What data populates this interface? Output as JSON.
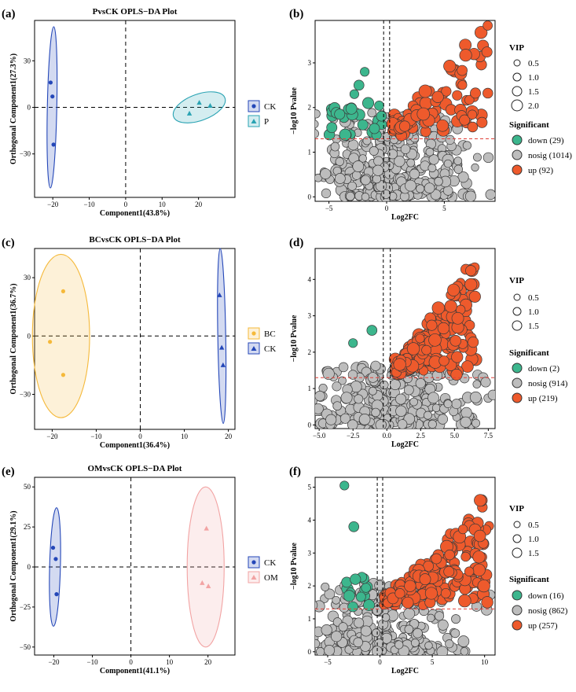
{
  "chart_data": [
    {
      "panel": "(a)",
      "type": "scatter",
      "title": "PvsCK OPLS−DA Plot",
      "xlabel": "Component1(43.8%)",
      "ylabel": "Orthogonal Component1(27.3%)",
      "xlim": [
        -25,
        30
      ],
      "ylim": [
        -58,
        56
      ],
      "xticks": [
        -20,
        -10,
        0,
        10,
        20
      ],
      "yticks": [
        -30,
        0,
        30
      ],
      "series": [
        {
          "name": "CK",
          "color": "#2447b8",
          "marker": "circle",
          "x": [
            -20.6,
            -20.1,
            -19.8
          ],
          "y": [
            16,
            7,
            -24
          ],
          "ellipse": {
            "cx": -20.2,
            "cy": 0,
            "rx": 1.3,
            "ry": 52,
            "rot": 1.2
          }
        },
        {
          "name": "P",
          "color": "#2aa3b3",
          "marker": "triangle",
          "x": [
            17.5,
            20.2,
            23.2
          ],
          "y": [
            -4,
            3,
            1
          ],
          "ellipse": {
            "cx": 20.2,
            "cy": 0,
            "rx": 7.5,
            "ry": 8.5,
            "rot": -20
          }
        }
      ]
    },
    {
      "panel": "(b)",
      "type": "scatter",
      "subtype": "volcano",
      "xlabel": "Log2FC",
      "ylabel": "−log10 Pvalue",
      "xlim": [
        -6.2,
        9.4
      ],
      "ylim": [
        -0.1,
        3.95
      ],
      "xticks": [
        -5,
        0,
        5
      ],
      "yticks": [
        0,
        1,
        2,
        3
      ],
      "threshold_p": 1.3,
      "fc_lines": [
        -0.26,
        0.26
      ],
      "vip_legend": [
        "0.5",
        "1.0",
        "1.5",
        "2.0"
      ],
      "categories": [
        {
          "name": "down",
          "label": "down (29)",
          "count": 29,
          "color": "#3cb68d"
        },
        {
          "name": "nosig",
          "label": "nosig (1014)",
          "count": 1014,
          "color": "#bdbdbd"
        },
        {
          "name": "up",
          "label": "up (92)",
          "count": 92,
          "color": "#ee5a2c"
        }
      ]
    },
    {
      "panel": "(c)",
      "type": "scatter",
      "title": "BCvsCK OPLS−DA Plot",
      "xlabel": "Component1(36.4%)",
      "ylabel": "Orthogonal Component1(36.7%)",
      "xlim": [
        -24,
        21.5
      ],
      "ylim": [
        -48,
        45
      ],
      "xticks": [
        -20,
        -10,
        0,
        10,
        20
      ],
      "yticks": [
        -30,
        0,
        30
      ],
      "series": [
        {
          "name": "BC",
          "color": "#f5b93a",
          "marker": "circle",
          "x": [
            -20.5,
            -17.5,
            -17.5
          ],
          "y": [
            -3,
            23,
            -20
          ],
          "ellipse": {
            "cx": -18,
            "cy": 0,
            "rx": 6.5,
            "ry": 42,
            "rot": 0
          }
        },
        {
          "name": "CK",
          "color": "#2447b8",
          "marker": "triangle",
          "x": [
            18,
            18.5,
            18.8
          ],
          "y": [
            21,
            -6,
            -15
          ],
          "ellipse": {
            "cx": 18.5,
            "cy": 0,
            "rx": 0.9,
            "ry": 45,
            "rot": -1
          }
        }
      ]
    },
    {
      "panel": "(d)",
      "type": "scatter",
      "subtype": "volcano",
      "xlabel": "Log2FC",
      "ylabel": "−log10 Pvalue",
      "xlim": [
        -5.3,
        8.0
      ],
      "ylim": [
        -0.1,
        4.85
      ],
      "xticks": [
        -5.0,
        -2.5,
        0.0,
        2.5,
        5.0,
        7.5
      ],
      "xticklabels": [
        "−5.0",
        "−2.5",
        "0.0",
        "2.5",
        "5.0",
        "7.5"
      ],
      "yticks": [
        0,
        1,
        2,
        3,
        4
      ],
      "threshold_p": 1.3,
      "fc_lines": [
        -0.26,
        0.26
      ],
      "vip_legend": [
        "0.5",
        "1.0",
        "1.5"
      ],
      "categories": [
        {
          "name": "down",
          "label": "down (2)",
          "count": 2,
          "color": "#3cb68d"
        },
        {
          "name": "nosig",
          "label": "nosig (914)",
          "count": 914,
          "color": "#bdbdbd"
        },
        {
          "name": "up",
          "label": "up (219)",
          "count": 219,
          "color": "#ee5a2c"
        }
      ]
    },
    {
      "panel": "(e)",
      "type": "scatter",
      "title": "OMvsCK OPLS−DA Plot",
      "xlabel": "Component1(41.1%)",
      "ylabel": "Orthogonal Component1(29.1%)",
      "xlim": [
        -25,
        27
      ],
      "ylim": [
        -55,
        56
      ],
      "xticks": [
        -20,
        -10,
        0,
        10,
        20
      ],
      "yticks": [
        -50,
        -25,
        0,
        25,
        50
      ],
      "series": [
        {
          "name": "CK",
          "color": "#2447b8",
          "marker": "circle",
          "x": [
            -20.2,
            -19.5,
            -19.3
          ],
          "y": [
            12,
            5,
            -17
          ],
          "ellipse": {
            "cx": -19.7,
            "cy": 0,
            "rx": 1.4,
            "ry": 37,
            "rot": 1.5
          }
        },
        {
          "name": "OM",
          "color": "#f2a3a3",
          "marker": "triangle",
          "x": [
            18.5,
            19.6,
            20.1
          ],
          "y": [
            -10,
            24,
            -12
          ],
          "ellipse": {
            "cx": 19.4,
            "cy": 0,
            "rx": 4.8,
            "ry": 50,
            "rot": 0
          }
        }
      ]
    },
    {
      "panel": "(f)",
      "type": "scatter",
      "subtype": "volcano",
      "xlabel": "Log2FC",
      "ylabel": "−log10 Pvalue",
      "xlim": [
        -6.2,
        11.0
      ],
      "ylim": [
        -0.1,
        5.3
      ],
      "xticks": [
        -5,
        0,
        5,
        10
      ],
      "yticks": [
        0,
        1,
        2,
        3,
        4,
        5
      ],
      "threshold_p": 1.3,
      "fc_lines": [
        -0.26,
        0.26
      ],
      "vip_legend": [
        "0.5",
        "1.0",
        "1.5"
      ],
      "categories": [
        {
          "name": "down",
          "label": "down (16)",
          "count": 16,
          "color": "#3cb68d"
        },
        {
          "name": "nosig",
          "label": "nosig (862)",
          "count": 862,
          "color": "#bdbdbd"
        },
        {
          "name": "up",
          "label": "up (257)",
          "count": 257,
          "color": "#ee5a2c"
        }
      ]
    }
  ],
  "legend_titles": {
    "vip": "VIP",
    "significant": "Significant"
  }
}
